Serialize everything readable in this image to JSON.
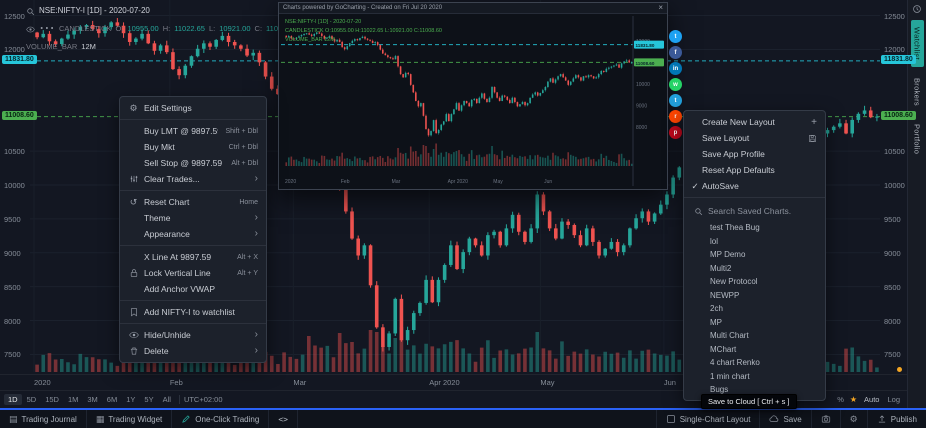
{
  "symbol_header": {
    "title": "NSE:NIFTY-I [1D] - 2020-07-20",
    "series": {
      "name": "CANDLESTICK",
      "o_label": "O:",
      "o": "10955.00",
      "h_label": "H:",
      "h": "11022.65",
      "l_label": "L:",
      "l": "10921.00",
      "c_label": "C:",
      "c": "11008.60"
    },
    "volume": {
      "name": "VOLUME_BAR",
      "value": "12M"
    }
  },
  "price_axis": {
    "prev_close_badge": "11831.80",
    "last_price_badge": "11008.60"
  },
  "context_menu": {
    "items": [
      {
        "label": "Edit Settings"
      },
      {
        "label": "Buy LMT @ 9897.59",
        "shortcut": "Shift + Dbl"
      },
      {
        "label": "Buy Mkt",
        "shortcut": "Ctrl + Dbl"
      },
      {
        "label": "Sell Stop @ 9897.59",
        "shortcut": "Alt + Dbl"
      },
      {
        "label": "Clear Trades..."
      },
      {
        "label": "Reset Chart",
        "shortcut": "Home"
      },
      {
        "label": "Theme"
      },
      {
        "label": "Appearance"
      },
      {
        "label": "X Line At 9897.59",
        "shortcut": "Alt + X"
      },
      {
        "label": "Lock Vertical Line",
        "shortcut": "Alt + Y"
      },
      {
        "label": "Add Anchor VWAP"
      },
      {
        "label": "Add NIFTY-I to watchlist"
      },
      {
        "label": "Hide/Unhide"
      },
      {
        "label": "Delete"
      }
    ]
  },
  "layout_menu": {
    "items": [
      {
        "label": "Create New Layout"
      },
      {
        "label": "Save Layout"
      },
      {
        "label": "Save App Profile"
      },
      {
        "label": "Reset App Defaults"
      },
      {
        "label": "AutoSave"
      }
    ],
    "search_placeholder": "Search Saved Charts.",
    "saved_charts": [
      "test Thea Bug",
      "lol",
      "MP Demo",
      "Multi2",
      "New Protocol",
      "NEWPP",
      "2ch",
      "MP",
      "Multi Chart",
      "MChart",
      "4 chart Renko",
      "1 min chart",
      "Bugs"
    ]
  },
  "preview": {
    "titlebar": "Charts powered by GoCharting - Created on Fri Jul 20 2020",
    "info_line1": "NSE:NIFTY-I [1D] - 2020-07-20",
    "info_line2": "CANDLESTICK O:10955.00 H:11022.65 L:10921.00 C:11008.60",
    "info_line3": "VOLUME_BAR 12M",
    "close_glyph": "×",
    "share_icons": [
      {
        "name": "twitter",
        "color": "#1da1f2",
        "glyph": "t"
      },
      {
        "name": "facebook",
        "color": "#3b5998",
        "glyph": "f"
      },
      {
        "name": "linkedin",
        "color": "#0077b5",
        "glyph": "in"
      },
      {
        "name": "whatsapp",
        "color": "#25d366",
        "glyph": "w"
      },
      {
        "name": "telegram",
        "color": "#229ed9",
        "glyph": "t"
      },
      {
        "name": "reddit",
        "color": "#ff4500",
        "glyph": "r"
      },
      {
        "name": "pinterest",
        "color": "#bd081c",
        "glyph": "p"
      }
    ]
  },
  "toolbar": {
    "timeframes": [
      "1D",
      "5D",
      "15D",
      "1M",
      "3M",
      "6M",
      "1Y",
      "5Y",
      "All"
    ],
    "timezone": "UTC+02:00",
    "percent": "%",
    "star": "★",
    "scale_auto": "Auto",
    "scale_log": "Log"
  },
  "bottom_bar": {
    "trading_journal": "Trading Journal",
    "trading_widget": "Trading Widget",
    "one_click": "One-Click Trading",
    "code": "<>",
    "layout": "Single-Chart Layout",
    "save": "Save",
    "publish": "Publish"
  },
  "tooltip": "Save to Cloud [ Ctrl + s ]",
  "sidebar": {
    "tabs": [
      "Watchlist",
      "Brokers",
      "Portfolio"
    ]
  },
  "chart_data": {
    "type": "candlestick",
    "symbol": "NSE:NIFTY-I",
    "interval": "1D",
    "ylim": [
      7300,
      12700
    ],
    "axis_prices": [
      12500,
      12000,
      10500,
      10000,
      9500,
      9000,
      8500,
      8000,
      7500
    ],
    "levels": [
      {
        "price": 11831.8,
        "color": "#26c6da",
        "label": "11831.80"
      },
      {
        "price": 11008.6,
        "color": "#4caf50",
        "label": "11008.60"
      }
    ],
    "months": [
      "2020",
      "Feb",
      "Mar",
      "Apr 2020",
      "May",
      "Jun"
    ],
    "month_start_idx": [
      0,
      22,
      42,
      64,
      82,
      102
    ],
    "last_ohlc": {
      "o": 10955.0,
      "h": 11022.65,
      "l": 10921.0,
      "c": 11008.6
    },
    "up_color": "#26a69a",
    "down_color": "#ef5350",
    "closes": [
      12180,
      12230,
      12120,
      12080,
      12160,
      12220,
      12280,
      12330,
      12360,
      12300,
      12240,
      12330,
      12400,
      12350,
      12240,
      12110,
      12160,
      12230,
      12090,
      11980,
      12060,
      11960,
      11710,
      11620,
      11760,
      11900,
      12010,
      12090,
      12040,
      12140,
      12200,
      12110,
      12060,
      12010,
      11910,
      11950,
      11810,
      11600,
      11420,
      11340,
      11250,
      11200,
      11150,
      11300,
      10820,
      10460,
      10310,
      10520,
      10460,
      9960,
      9610,
      9210,
      8960,
      9110,
      8520,
      7900,
      7610,
      7810,
      8320,
      7710,
      7860,
      8110,
      8260,
      8600,
      8270,
      8600,
      8820,
      9110,
      8760,
      9010,
      9210,
      9110,
      8960,
      9260,
      9310,
      9110,
      9360,
      9560,
      9310,
      9160,
      9360,
      9860,
      9610,
      9360,
      9210,
      9460,
      9410,
      9260,
      9110,
      9360,
      9160,
      8960,
      9060,
      9160,
      9010,
      9110,
      9360,
      9510,
      9610,
      9460,
      9580,
      9710,
      9860,
      10110,
      10260,
      10060,
      10210,
      10360,
      10460,
      10310,
      10160,
      9960,
      10110,
      10260,
      10410,
      10310,
      10160,
      10360,
      10310,
      10410,
      10360,
      10260,
      10310,
      10460,
      10610,
      10560,
      10710,
      10760,
      10810,
      10860,
      10910,
      10760,
      10960,
      11050,
      11100,
      11000,
      11008.6
    ]
  }
}
